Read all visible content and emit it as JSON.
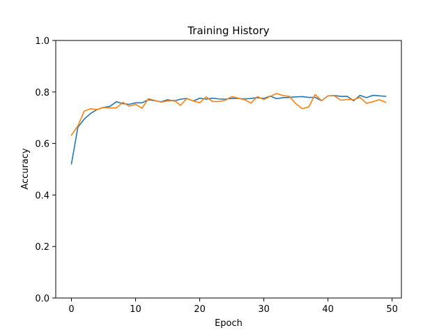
{
  "chart_data": {
    "type": "line",
    "title": "Training History",
    "xlabel": "Epoch",
    "ylabel": "Accuracy",
    "xlim": [
      -2.45,
      51.45
    ],
    "ylim": [
      0.0,
      1.0
    ],
    "xticks": [
      0,
      10,
      20,
      30,
      40,
      50
    ],
    "yticks": [
      0.0,
      0.2,
      0.4,
      0.6,
      0.8,
      1.0
    ],
    "xtick_labels": [
      "0",
      "10",
      "20",
      "30",
      "40",
      "50"
    ],
    "ytick_labels": [
      "0.0",
      "0.2",
      "0.4",
      "0.6",
      "0.8",
      "1.0"
    ],
    "grid": false,
    "legend": false,
    "x": [
      0,
      1,
      2,
      3,
      4,
      5,
      6,
      7,
      8,
      9,
      10,
      11,
      12,
      13,
      14,
      15,
      16,
      17,
      18,
      19,
      20,
      21,
      22,
      23,
      24,
      25,
      26,
      27,
      28,
      29,
      30,
      31,
      32,
      33,
      34,
      35,
      36,
      37,
      38,
      39,
      40,
      41,
      42,
      43,
      44,
      45,
      46,
      47,
      48,
      49
    ],
    "series": [
      {
        "color": "#1f77b4",
        "values": [
          0.521,
          0.663,
          0.695,
          0.717,
          0.732,
          0.74,
          0.744,
          0.762,
          0.755,
          0.752,
          0.758,
          0.758,
          0.77,
          0.766,
          0.762,
          0.77,
          0.765,
          0.772,
          0.775,
          0.765,
          0.776,
          0.772,
          0.776,
          0.773,
          0.772,
          0.775,
          0.775,
          0.773,
          0.775,
          0.778,
          0.775,
          0.784,
          0.774,
          0.778,
          0.779,
          0.781,
          0.782,
          0.779,
          0.779,
          0.766,
          0.785,
          0.786,
          0.783,
          0.783,
          0.766,
          0.787,
          0.778,
          0.787,
          0.785,
          0.783
        ]
      },
      {
        "color": "#ff7f0e",
        "values": [
          0.632,
          0.668,
          0.726,
          0.735,
          0.732,
          0.74,
          0.738,
          0.738,
          0.76,
          0.745,
          0.752,
          0.737,
          0.774,
          0.767,
          0.761,
          0.765,
          0.768,
          0.748,
          0.775,
          0.765,
          0.758,
          0.781,
          0.763,
          0.763,
          0.768,
          0.782,
          0.776,
          0.77,
          0.757,
          0.782,
          0.771,
          0.783,
          0.794,
          0.786,
          0.783,
          0.754,
          0.735,
          0.742,
          0.79,
          0.766,
          0.785,
          0.785,
          0.768,
          0.771,
          0.77,
          0.779,
          0.756,
          0.762,
          0.77,
          0.76
        ]
      }
    ]
  }
}
